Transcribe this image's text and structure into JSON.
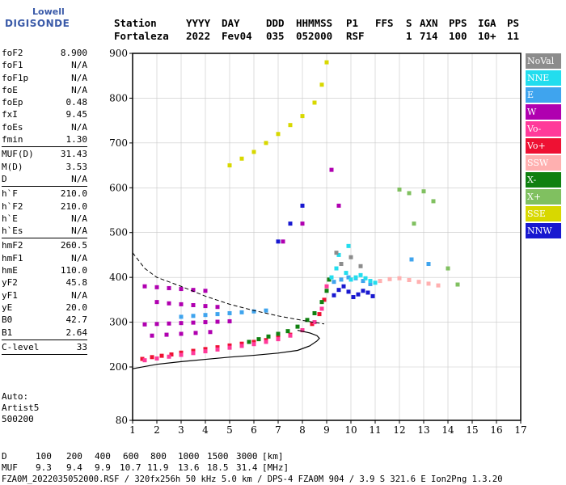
{
  "logo": {
    "line1": "Lowell",
    "line2": "DIGISONDE"
  },
  "header": {
    "labels": [
      "Station",
      "YYYY",
      "DAY",
      "DDD",
      "HHMMSS",
      "P1",
      "FFS",
      "S",
      "AXN",
      "PPS",
      "IGA",
      "PS"
    ],
    "values": [
      "Fortaleza",
      "2022",
      "Fev04",
      "035",
      "052000",
      "RSF",
      "1",
      "714",
      "100",
      "10+",
      "11"
    ]
  },
  "params": {
    "group1": [
      {
        "name": "foF2",
        "value": "8.900"
      },
      {
        "name": "foF1",
        "value": "N/A"
      },
      {
        "name": "foF1p",
        "value": "N/A"
      },
      {
        "name": "foE",
        "value": "N/A"
      },
      {
        "name": "foEp",
        "value": "0.48"
      },
      {
        "name": "fxI",
        "value": "9.45"
      },
      {
        "name": "foEs",
        "value": "N/A"
      },
      {
        "name": "fmin",
        "value": "1.30"
      }
    ],
    "group2": [
      {
        "name": "MUF(D)",
        "value": "31.43"
      },
      {
        "name": "M(D)",
        "value": "3.53"
      },
      {
        "name": "D",
        "value": "N/A"
      }
    ],
    "group3": [
      {
        "name": "h`F",
        "value": "210.0"
      },
      {
        "name": "h`F2",
        "value": "210.0"
      },
      {
        "name": "h`E",
        "value": "N/A"
      },
      {
        "name": "h`Es",
        "value": "N/A"
      }
    ],
    "group4": [
      {
        "name": "hmF2",
        "value": "260.5"
      },
      {
        "name": "hmF1",
        "value": "N/A"
      },
      {
        "name": "hmE",
        "value": "110.0"
      },
      {
        "name": "yF2",
        "value": "45.8"
      },
      {
        "name": "yF1",
        "value": "N/A"
      },
      {
        "name": "yE",
        "value": "20.0"
      },
      {
        "name": "B0",
        "value": "42.7"
      },
      {
        "name": "B1",
        "value": "2.64"
      }
    ],
    "group5": [
      {
        "name": "C-level",
        "value": "33"
      }
    ]
  },
  "auto": {
    "line1": "Auto:",
    "line2": "Artist5",
    "line3": "500200"
  },
  "legend": [
    {
      "label": "NoVal",
      "color": "#8c8c8c"
    },
    {
      "label": "NNE",
      "color": "#22ddee"
    },
    {
      "label": "E",
      "color": "#3fa4ee"
    },
    {
      "label": "W",
      "color": "#b000b0"
    },
    {
      "label": "Vo-",
      "color": "#ff3a9a"
    },
    {
      "label": "Vo+",
      "color": "#ee1133"
    },
    {
      "label": "SSW",
      "color": "#ffb0b0"
    },
    {
      "label": "X-",
      "color": "#108010"
    },
    {
      "label": "X+",
      "color": "#80c060"
    },
    {
      "label": "SSE",
      "color": "#d8d800"
    },
    {
      "label": "NNW",
      "color": "#1818d0"
    }
  ],
  "bottom": {
    "d_label": "D",
    "d_values": [
      "100",
      "200",
      "400",
      "600",
      "800",
      "1000",
      "1500",
      "3000"
    ],
    "d_unit": "[km]",
    "muf_label": "MUF",
    "muf_values": [
      "9.3",
      "9.4",
      "9.9",
      "10.7",
      "11.9",
      "13.6",
      "18.5",
      "31.4"
    ],
    "muf_unit": "[MHz]",
    "footer": "FZA0M_2022035052000.RSF / 320fx256h 50 kHz 5.0 km / DPS-4 FZA0M 904 / 3.9 S 321.6 E   Ion2Png 1.3.20"
  },
  "chart_data": {
    "type": "scatter",
    "xlim": [
      1,
      17
    ],
    "ylim": [
      80,
      900
    ],
    "xticks": [
      1,
      2,
      3,
      4,
      5,
      6,
      7,
      8,
      9,
      10,
      11,
      12,
      13,
      14,
      15,
      16,
      17
    ],
    "yticks": [
      80,
      200,
      300,
      400,
      500,
      600,
      700,
      800,
      900
    ],
    "grid": true,
    "profile_curve": {
      "x": [
        1.0,
        2.0,
        3.0,
        4.0,
        5.0,
        6.0,
        7.0,
        7.8,
        8.3,
        8.6,
        8.7,
        8.6,
        8.3,
        7.8
      ],
      "y": [
        196,
        206,
        212,
        217,
        222,
        226,
        231,
        237,
        247,
        258,
        264,
        270,
        276,
        282
      ]
    },
    "dashed_curve": {
      "x": [
        1.0,
        1.5,
        2.0,
        3.0,
        4.0,
        5.0,
        6.0,
        7.0,
        8.0,
        8.9
      ],
      "y": [
        455,
        420,
        400,
        380,
        358,
        340,
        326,
        314,
        304,
        296
      ]
    },
    "series": [
      {
        "name": "Vo+",
        "x": [
          1.4,
          1.8,
          2.2,
          2.6,
          3.0,
          3.5,
          4.0,
          4.5,
          5.0,
          5.5,
          6.0,
          6.5,
          7.0,
          7.5,
          8.0,
          8.4,
          8.7,
          8.9
        ],
        "y": [
          218,
          222,
          225,
          228,
          232,
          236,
          240,
          244,
          248,
          252,
          256,
          260,
          266,
          272,
          282,
          296,
          318,
          350
        ]
      },
      {
        "name": "Vo-",
        "x": [
          1.5,
          2.0,
          2.5,
          3.0,
          3.5,
          4.0,
          4.5,
          5.0,
          5.5,
          6.0,
          6.5,
          7.0,
          7.5,
          8.0,
          8.5,
          8.8,
          9.0
        ],
        "y": [
          215,
          219,
          223,
          227,
          231,
          235,
          239,
          243,
          247,
          251,
          256,
          262,
          270,
          282,
          300,
          330,
          380
        ]
      },
      {
        "name": "X-",
        "x": [
          5.8,
          6.2,
          6.6,
          7.0,
          7.4,
          7.8,
          8.2,
          8.5,
          8.8,
          9.0,
          9.1
        ],
        "y": [
          256,
          262,
          268,
          274,
          280,
          290,
          305,
          320,
          345,
          370,
          395
        ]
      },
      {
        "name": "W",
        "x": [
          1.5,
          2.0,
          2.5,
          3.0,
          3.5,
          4.0,
          4.5,
          5.0,
          1.5,
          2.0,
          2.5,
          3.0,
          3.5,
          4.0,
          2.0,
          2.5,
          3.0,
          3.5,
          4.0,
          4.5,
          1.8,
          2.4,
          3.0,
          3.6,
          4.2,
          9.2,
          9.5,
          8.0,
          7.2
        ],
        "y": [
          295,
          296,
          297,
          298,
          299,
          300,
          301,
          302,
          380,
          378,
          376,
          374,
          372,
          370,
          345,
          342,
          340,
          338,
          336,
          334,
          270,
          272,
          274,
          276,
          278,
          640,
          560,
          520,
          480
        ]
      },
      {
        "name": "E",
        "x": [
          3.0,
          3.5,
          4.0,
          4.5,
          5.0,
          5.5,
          6.0,
          6.5,
          9.3,
          9.6,
          9.9,
          10.2,
          10.5,
          10.8,
          12.5,
          13.2
        ],
        "y": [
          312,
          314,
          316,
          318,
          320,
          322,
          324,
          326,
          390,
          395,
          400,
          398,
          392,
          385,
          440,
          430
        ]
      },
      {
        "name": "NNE",
        "x": [
          9.2,
          9.4,
          9.6,
          9.8,
          10.0,
          10.2,
          10.4,
          10.6,
          10.8,
          11.0,
          9.5,
          9.9
        ],
        "y": [
          400,
          420,
          430,
          410,
          395,
          400,
          405,
          398,
          392,
          388,
          450,
          470
        ]
      },
      {
        "name": "NNW",
        "x": [
          9.3,
          9.5,
          9.7,
          9.9,
          10.1,
          10.3,
          10.5,
          10.7,
          10.9,
          7.5,
          8.0,
          7.0
        ],
        "y": [
          360,
          372,
          380,
          368,
          356,
          362,
          370,
          366,
          358,
          520,
          560,
          480
        ]
      },
      {
        "name": "SSW",
        "x": [
          11.2,
          11.6,
          12.0,
          12.4,
          12.8,
          13.2,
          13.6
        ],
        "y": [
          392,
          396,
          398,
          394,
          390,
          386,
          382
        ]
      },
      {
        "name": "X+",
        "x": [
          12.0,
          12.4,
          13.0,
          13.4,
          14.0,
          14.4,
          12.6
        ],
        "y": [
          596,
          588,
          592,
          570,
          420,
          384,
          520
        ]
      },
      {
        "name": "SSE",
        "x": [
          5.0,
          5.5,
          6.0,
          6.5,
          7.0,
          7.5,
          8.0,
          8.5,
          8.8,
          9.0
        ],
        "y": [
          650,
          665,
          680,
          700,
          720,
          740,
          760,
          790,
          830,
          880
        ]
      },
      {
        "name": "NoVal",
        "x": [
          9.6,
          10.0,
          9.4,
          10.4
        ],
        "y": [
          430,
          445,
          455,
          425
        ]
      }
    ]
  }
}
